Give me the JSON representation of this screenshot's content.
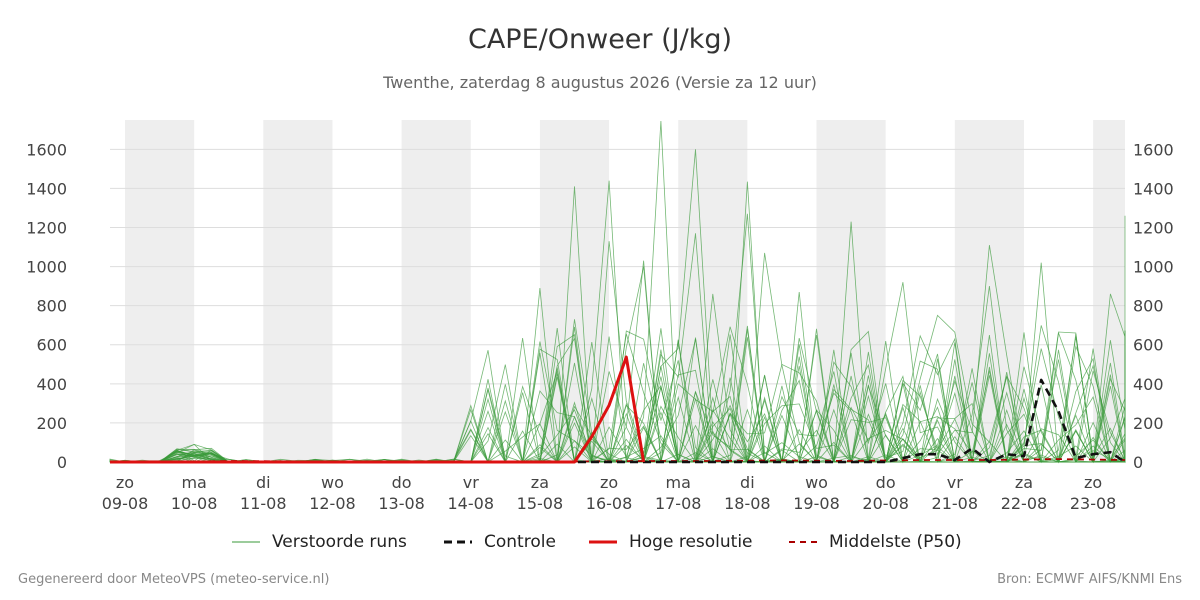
{
  "header": {
    "title": "CAPE/Onweer (J/kg)",
    "subtitle": "Twenthe, zaterdag  8 augustus 2026 (Versie za 12 uur)"
  },
  "legend": {
    "perturbed": "Verstoorde runs",
    "control": "Controle",
    "hires": "Hoge resolutie",
    "median": "Middelste (P50)"
  },
  "footer": {
    "left": "Gegenereerd door MeteoVPS (meteo-service.nl)",
    "right": "Bron: ECMWF AIFS/KNMI Ens"
  },
  "colors": {
    "perturbed": "#3a9a3a",
    "control": "#111111",
    "hires": "#dd1111",
    "median": "#aa0000",
    "weekend_band": "#eeeeee",
    "grid": "#dddddd"
  },
  "chart_data": {
    "type": "line",
    "ylim": [
      0,
      1750
    ],
    "yticks": [
      0,
      200,
      400,
      600,
      800,
      1000,
      1200,
      1400,
      1600
    ],
    "x_axis": {
      "start": "2026-08-08T12:00",
      "end": "2026-08-23T12:00",
      "ticks": [
        {
          "date": "2026-08-09",
          "day": "zo",
          "label": "09-08"
        },
        {
          "date": "2026-08-10",
          "day": "ma",
          "label": "10-08"
        },
        {
          "date": "2026-08-11",
          "day": "di",
          "label": "11-08"
        },
        {
          "date": "2026-08-12",
          "day": "wo",
          "label": "12-08"
        },
        {
          "date": "2026-08-13",
          "day": "do",
          "label": "13-08"
        },
        {
          "date": "2026-08-14",
          "day": "vr",
          "label": "14-08"
        },
        {
          "date": "2026-08-15",
          "day": "za",
          "label": "15-08"
        },
        {
          "date": "2026-08-16",
          "day": "zo",
          "label": "16-08"
        },
        {
          "date": "2026-08-17",
          "day": "ma",
          "label": "17-08"
        },
        {
          "date": "2026-08-18",
          "day": "di",
          "label": "18-08"
        },
        {
          "date": "2026-08-19",
          "day": "wo",
          "label": "19-08"
        },
        {
          "date": "2026-08-20",
          "day": "do",
          "label": "20-08"
        },
        {
          "date": "2026-08-21",
          "day": "vr",
          "label": "21-08"
        },
        {
          "date": "2026-08-22",
          "day": "za",
          "label": "22-08"
        },
        {
          "date": "2026-08-23",
          "day": "zo",
          "label": "23-08"
        }
      ]
    },
    "shaded_days": [
      "2026-08-09",
      "2026-08-11",
      "2026-08-13",
      "2026-08-15",
      "2026-08-17",
      "2026-08-19",
      "2026-08-21",
      "2026-08-23"
    ],
    "series": [
      {
        "name": "Hoge resolutie",
        "style": "solid",
        "points": [
          [
            "2026-08-08T12:00",
            0
          ],
          [
            "2026-08-09T12:00",
            0
          ],
          [
            "2026-08-10T12:00",
            0
          ],
          [
            "2026-08-11T12:00",
            0
          ],
          [
            "2026-08-12T12:00",
            0
          ],
          [
            "2026-08-13T12:00",
            0
          ],
          [
            "2026-08-14T12:00",
            0
          ],
          [
            "2026-08-15T06:00",
            0
          ],
          [
            "2026-08-15T12:00",
            0
          ],
          [
            "2026-08-15T18:00",
            130
          ],
          [
            "2026-08-16T00:00",
            290
          ],
          [
            "2026-08-16T06:00",
            537
          ],
          [
            "2026-08-16T12:00",
            0
          ]
        ]
      },
      {
        "name": "Controle",
        "style": "dashed",
        "points": [
          [
            "2026-08-08T12:00",
            0
          ],
          [
            "2026-08-10T12:00",
            0
          ],
          [
            "2026-08-13T12:00",
            0
          ],
          [
            "2026-08-17T12:00",
            0
          ],
          [
            "2026-08-20T00:00",
            0
          ],
          [
            "2026-08-20T12:00",
            40
          ],
          [
            "2026-08-20T18:00",
            40
          ],
          [
            "2026-08-21T00:00",
            10
          ],
          [
            "2026-08-21T06:00",
            70
          ],
          [
            "2026-08-21T12:00",
            0
          ],
          [
            "2026-08-21T18:00",
            40
          ],
          [
            "2026-08-22T00:00",
            30
          ],
          [
            "2026-08-22T06:00",
            420
          ],
          [
            "2026-08-22T12:00",
            260
          ],
          [
            "2026-08-22T18:00",
            20
          ],
          [
            "2026-08-23T00:00",
            40
          ],
          [
            "2026-08-23T06:00",
            50
          ],
          [
            "2026-08-23T12:00",
            0
          ]
        ]
      },
      {
        "name": "Middelste (P50)",
        "style": "dashed",
        "points": [
          [
            "2026-08-08T12:00",
            0
          ],
          [
            "2026-08-09T12:00",
            0
          ],
          [
            "2026-08-10T12:00",
            5
          ],
          [
            "2026-08-11T12:00",
            3
          ],
          [
            "2026-08-12T12:00",
            0
          ],
          [
            "2026-08-14T12:00",
            0
          ],
          [
            "2026-08-16T12:00",
            5
          ],
          [
            "2026-08-17T12:00",
            5
          ],
          [
            "2026-08-18T12:00",
            8
          ],
          [
            "2026-08-19T12:00",
            5
          ],
          [
            "2026-08-20T12:00",
            10
          ],
          [
            "2026-08-21T12:00",
            10
          ],
          [
            "2026-08-22T12:00",
            15
          ],
          [
            "2026-08-23T12:00",
            10
          ]
        ]
      }
    ],
    "ensemble_member_count": 30,
    "ensemble_notable_peaks": [
      [
        "2026-08-10T00:00",
        90
      ],
      [
        "2026-08-14T00:00",
        210
      ],
      [
        "2026-08-14T06:00",
        370
      ],
      [
        "2026-08-15T00:00",
        890
      ],
      [
        "2026-08-15T12:00",
        730
      ],
      [
        "2026-08-15T12:00",
        1410
      ],
      [
        "2026-08-16T00:00",
        1130
      ],
      [
        "2026-08-16T00:00",
        1440
      ],
      [
        "2026-08-16T12:00",
        1030
      ],
      [
        "2026-08-16T12:00",
        1000
      ],
      [
        "2026-08-16T18:00",
        1745
      ],
      [
        "2026-08-17T06:00",
        1600
      ],
      [
        "2026-08-17T06:00",
        1170
      ],
      [
        "2026-08-17T12:00",
        860
      ],
      [
        "2026-08-18T00:00",
        1435
      ],
      [
        "2026-08-18T00:00",
        1270
      ],
      [
        "2026-08-18T06:00",
        1070
      ],
      [
        "2026-08-18T18:00",
        870
      ],
      [
        "2026-08-19T12:00",
        1230
      ],
      [
        "2026-08-20T06:00",
        920
      ],
      [
        "2026-08-20T18:00",
        750
      ],
      [
        "2026-08-21T12:00",
        1110
      ],
      [
        "2026-08-21T12:00",
        900
      ],
      [
        "2026-08-22T06:00",
        1020
      ],
      [
        "2026-08-22T18:00",
        660
      ],
      [
        "2026-08-23T06:00",
        860
      ],
      [
        "2026-08-23T18:00",
        1260
      ],
      [
        "2026-08-24T06:00",
        670
      ]
    ]
  }
}
